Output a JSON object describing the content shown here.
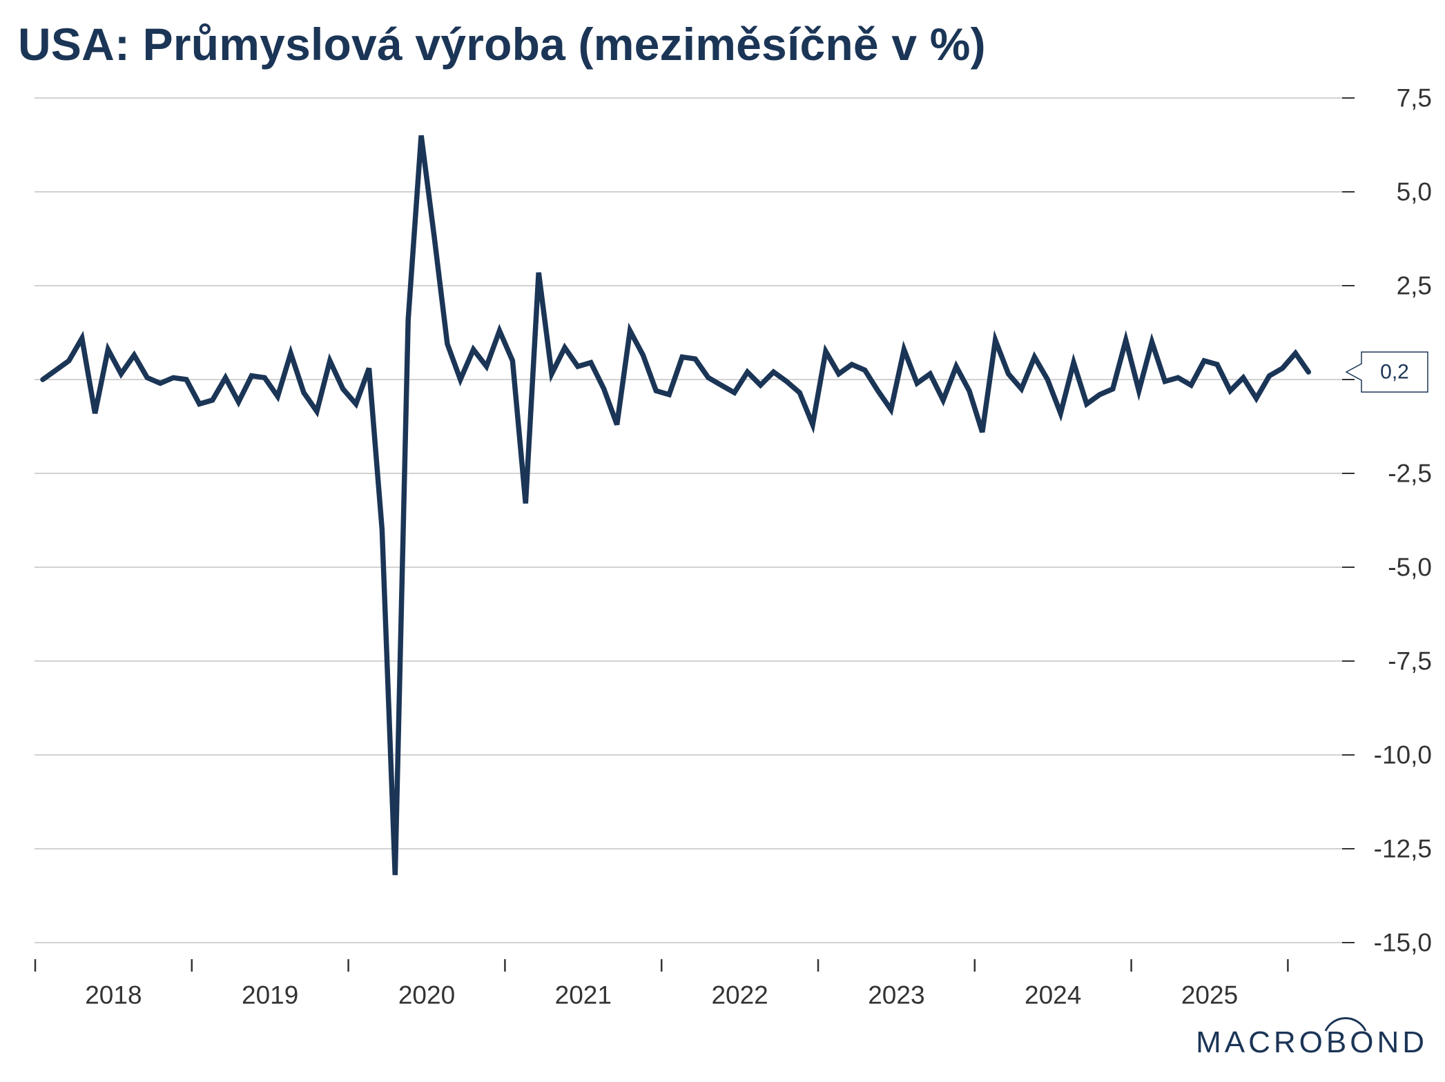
{
  "header": {
    "title": "USA: Průmyslová výroba (meziměsíčně v %)"
  },
  "brand": {
    "text": "MACROBOND"
  },
  "colors": {
    "line": "#1b3556",
    "grid": "#c4c4c4",
    "axis": "#333333",
    "title": "#1b3556"
  },
  "last_value_label": "0,2",
  "chart_data": {
    "type": "line",
    "title": "USA: Průmyslová výroba (meziměsíčně v %)",
    "xlabel": "",
    "ylabel": "",
    "x_start": "2018-01",
    "frequency": "monthly",
    "ylim": [
      -15,
      7.5
    ],
    "y_ticks": [
      7.5,
      5,
      2.5,
      0,
      -2.5,
      -5,
      -7.5,
      -10,
      -12.5,
      -15
    ],
    "y_tick_labels": [
      "7,5",
      "5,0",
      "2,5",
      "",
      "-2,5",
      "-5,0",
      "-7,5",
      "-10,0",
      "-12,5",
      "-15,0"
    ],
    "x_tick_labels": [
      "2018",
      "2019",
      "2020",
      "2021",
      "2022",
      "2023",
      "2024",
      "2025"
    ],
    "grid": true,
    "series": [
      {
        "values": [
          0.0,
          0.25,
          0.5,
          1.1,
          -0.9,
          0.8,
          0.15,
          0.65,
          0.05,
          -0.1,
          0.05,
          0.0,
          -0.65,
          -0.55,
          0.05,
          -0.6,
          0.1,
          0.05,
          -0.45,
          0.7,
          -0.35,
          -0.85,
          0.5,
          -0.25,
          -0.65,
          0.3,
          -4.0,
          -13.2,
          1.6,
          6.5,
          3.8,
          0.95,
          0.0,
          0.8,
          0.35,
          1.3,
          0.5,
          -3.3,
          2.85,
          0.15,
          0.85,
          0.35,
          0.45,
          -0.25,
          -1.2,
          1.3,
          0.65,
          -0.3,
          -0.4,
          0.6,
          0.55,
          0.05,
          -0.15,
          -0.35,
          0.2,
          -0.15,
          0.2,
          -0.05,
          -0.35,
          -1.2,
          0.75,
          0.15,
          0.4,
          0.25,
          -0.3,
          -0.8,
          0.8,
          -0.1,
          0.15,
          -0.55,
          0.35,
          -0.3,
          -1.4,
          1.05,
          0.15,
          -0.25,
          0.6,
          0.0,
          -0.9,
          0.45,
          -0.65,
          -0.4,
          -0.25,
          1.05,
          -0.3,
          1.0,
          -0.05,
          0.05,
          -0.15,
          0.5,
          0.4,
          -0.3,
          0.05,
          -0.5,
          0.1,
          0.3,
          0.7,
          0.2
        ]
      }
    ]
  }
}
